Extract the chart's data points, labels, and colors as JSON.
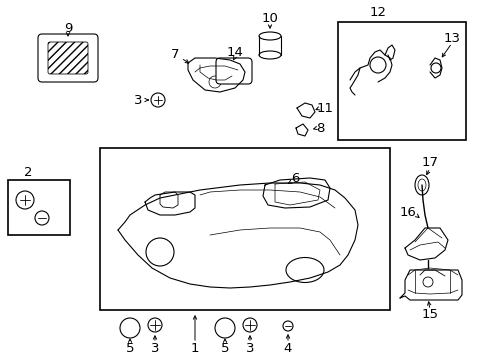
{
  "background_color": "#ffffff",
  "line_color": "#000000",
  "figsize": [
    4.89,
    3.6
  ],
  "dpi": 100,
  "label_fontsize": 8.5,
  "arrow_lw": 0.7,
  "part_lw": 0.8
}
